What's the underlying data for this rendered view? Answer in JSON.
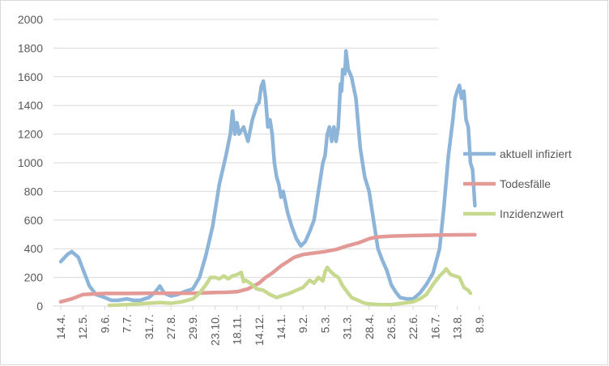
{
  "chart_data": {
    "type": "line",
    "title": "",
    "xlabel": "",
    "ylabel": "",
    "ylim": [
      0,
      2000
    ],
    "yticks": [
      0,
      200,
      400,
      600,
      800,
      1000,
      1200,
      1400,
      1600,
      1800,
      2000
    ],
    "grid": "horizontal",
    "legend": "right",
    "x_categories": [
      "14.4.",
      "12.5.",
      "9.6.",
      "7.7.",
      "31.7.",
      "27.8.",
      "29.9.",
      "23.10.",
      "18.11.",
      "14.12.",
      "14.1.",
      "9.2.",
      "5.3.",
      "31.3.",
      "28.4.",
      "26.5.",
      "22.6.",
      "16.7.",
      "13.8.",
      "8.9."
    ],
    "series": [
      {
        "name": "aktuell infiziert",
        "color": "#8db4d9",
        "points": [
          [
            0,
            310
          ],
          [
            0.3,
            360
          ],
          [
            0.5,
            380
          ],
          [
            0.8,
            340
          ],
          [
            1,
            260
          ],
          [
            1.3,
            140
          ],
          [
            1.6,
            80
          ],
          [
            2,
            60
          ],
          [
            2.3,
            40
          ],
          [
            2.6,
            40
          ],
          [
            3,
            50
          ],
          [
            3.3,
            40
          ],
          [
            3.6,
            40
          ],
          [
            4,
            60
          ],
          [
            4.3,
            100
          ],
          [
            4.5,
            140
          ],
          [
            4.7,
            90
          ],
          [
            5,
            70
          ],
          [
            5.3,
            80
          ],
          [
            5.6,
            100
          ],
          [
            6,
            120
          ],
          [
            6.3,
            200
          ],
          [
            6.6,
            360
          ],
          [
            6.9,
            560
          ],
          [
            7.2,
            850
          ],
          [
            7.5,
            1050
          ],
          [
            7.7,
            1200
          ],
          [
            7.8,
            1360
          ],
          [
            7.9,
            1200
          ],
          [
            8,
            1280
          ],
          [
            8.1,
            1200
          ],
          [
            8.3,
            1250
          ],
          [
            8.5,
            1150
          ],
          [
            8.7,
            1300
          ],
          [
            8.9,
            1400
          ],
          [
            9,
            1420
          ],
          [
            9.1,
            1530
          ],
          [
            9.2,
            1570
          ],
          [
            9.3,
            1450
          ],
          [
            9.4,
            1250
          ],
          [
            9.5,
            1300
          ],
          [
            9.6,
            1200
          ],
          [
            9.7,
            1000
          ],
          [
            9.8,
            900
          ],
          [
            9.9,
            850
          ],
          [
            10,
            760
          ],
          [
            10.1,
            800
          ],
          [
            10.3,
            650
          ],
          [
            10.5,
            550
          ],
          [
            10.7,
            470
          ],
          [
            10.9,
            420
          ],
          [
            11.1,
            450
          ],
          [
            11.3,
            520
          ],
          [
            11.5,
            600
          ],
          [
            11.7,
            800
          ],
          [
            11.9,
            1000
          ],
          [
            12,
            1050
          ],
          [
            12.1,
            1200
          ],
          [
            12.2,
            1250
          ],
          [
            12.3,
            1150
          ],
          [
            12.4,
            1250
          ],
          [
            12.5,
            1150
          ],
          [
            12.6,
            1250
          ],
          [
            12.7,
            1550
          ],
          [
            12.75,
            1500
          ],
          [
            12.8,
            1650
          ],
          [
            12.9,
            1620
          ],
          [
            12.95,
            1780
          ],
          [
            13.05,
            1650
          ],
          [
            13.2,
            1600
          ],
          [
            13.4,
            1450
          ],
          [
            13.6,
            1100
          ],
          [
            13.8,
            900
          ],
          [
            14,
            800
          ],
          [
            14.2,
            600
          ],
          [
            14.4,
            400
          ],
          [
            14.6,
            320
          ],
          [
            14.8,
            250
          ],
          [
            15,
            150
          ],
          [
            15.2,
            100
          ],
          [
            15.4,
            60
          ],
          [
            15.7,
            50
          ],
          [
            16,
            50
          ],
          [
            16.3,
            90
          ],
          [
            16.6,
            150
          ],
          [
            16.9,
            230
          ],
          [
            17.2,
            400
          ],
          [
            17.4,
            700
          ],
          [
            17.6,
            1050
          ],
          [
            17.8,
            1300
          ],
          [
            17.9,
            1450
          ],
          [
            18,
            1500
          ],
          [
            18.1,
            1540
          ],
          [
            18.2,
            1450
          ],
          [
            18.3,
            1500
          ],
          [
            18.4,
            1300
          ],
          [
            18.5,
            1250
          ],
          [
            18.6,
            1000
          ],
          [
            18.7,
            950
          ],
          [
            18.8,
            700
          ]
        ]
      },
      {
        "name": "Todesfälle",
        "color": "#e39a96",
        "points": [
          [
            0,
            30
          ],
          [
            0.5,
            50
          ],
          [
            1,
            80
          ],
          [
            1.5,
            85
          ],
          [
            2,
            88
          ],
          [
            3,
            88
          ],
          [
            4,
            90
          ],
          [
            5,
            90
          ],
          [
            6,
            90
          ],
          [
            6.5,
            92
          ],
          [
            7,
            95
          ],
          [
            7.5,
            96
          ],
          [
            8,
            100
          ],
          [
            8.5,
            120
          ],
          [
            9,
            160
          ],
          [
            9.3,
            200
          ],
          [
            9.6,
            230
          ],
          [
            10,
            280
          ],
          [
            10.3,
            310
          ],
          [
            10.6,
            340
          ],
          [
            11,
            360
          ],
          [
            11.5,
            370
          ],
          [
            12,
            380
          ],
          [
            12.5,
            395
          ],
          [
            13,
            420
          ],
          [
            13.5,
            440
          ],
          [
            14,
            470
          ],
          [
            14.3,
            480
          ],
          [
            14.6,
            485
          ],
          [
            15,
            488
          ],
          [
            15.5,
            490
          ],
          [
            16,
            492
          ],
          [
            17,
            495
          ],
          [
            18,
            497
          ],
          [
            18.8,
            498
          ]
        ]
      },
      {
        "name": "Inzidenzwert",
        "color": "#c6d98f",
        "points": [
          [
            2.2,
            5
          ],
          [
            3,
            10
          ],
          [
            3.5,
            15
          ],
          [
            4,
            20
          ],
          [
            4.5,
            25
          ],
          [
            5,
            20
          ],
          [
            5.5,
            30
          ],
          [
            6,
            50
          ],
          [
            6.3,
            90
          ],
          [
            6.6,
            150
          ],
          [
            6.8,
            200
          ],
          [
            7,
            200
          ],
          [
            7.2,
            190
          ],
          [
            7.4,
            210
          ],
          [
            7.6,
            190
          ],
          [
            7.8,
            210
          ],
          [
            8,
            220
          ],
          [
            8.2,
            235
          ],
          [
            8.3,
            170
          ],
          [
            8.4,
            180
          ],
          [
            8.6,
            160
          ],
          [
            8.9,
            120
          ],
          [
            9.2,
            110
          ],
          [
            9.5,
            80
          ],
          [
            9.8,
            60
          ],
          [
            10,
            70
          ],
          [
            10.4,
            90
          ],
          [
            10.7,
            110
          ],
          [
            11,
            130
          ],
          [
            11.3,
            180
          ],
          [
            11.5,
            160
          ],
          [
            11.7,
            200
          ],
          [
            11.9,
            175
          ],
          [
            12,
            240
          ],
          [
            12.1,
            270
          ],
          [
            12.2,
            250
          ],
          [
            12.4,
            220
          ],
          [
            12.6,
            200
          ],
          [
            12.8,
            140
          ],
          [
            13,
            100
          ],
          [
            13.2,
            60
          ],
          [
            13.5,
            40
          ],
          [
            13.8,
            20
          ],
          [
            14,
            15
          ],
          [
            14.5,
            10
          ],
          [
            15,
            10
          ],
          [
            15.5,
            20
          ],
          [
            16,
            30
          ],
          [
            16.3,
            50
          ],
          [
            16.6,
            80
          ],
          [
            16.9,
            150
          ],
          [
            17.2,
            210
          ],
          [
            17.4,
            240
          ],
          [
            17.5,
            260
          ],
          [
            17.7,
            220
          ],
          [
            17.9,
            210
          ],
          [
            18.1,
            200
          ],
          [
            18.3,
            130
          ],
          [
            18.5,
            110
          ],
          [
            18.6,
            90
          ]
        ]
      }
    ]
  }
}
